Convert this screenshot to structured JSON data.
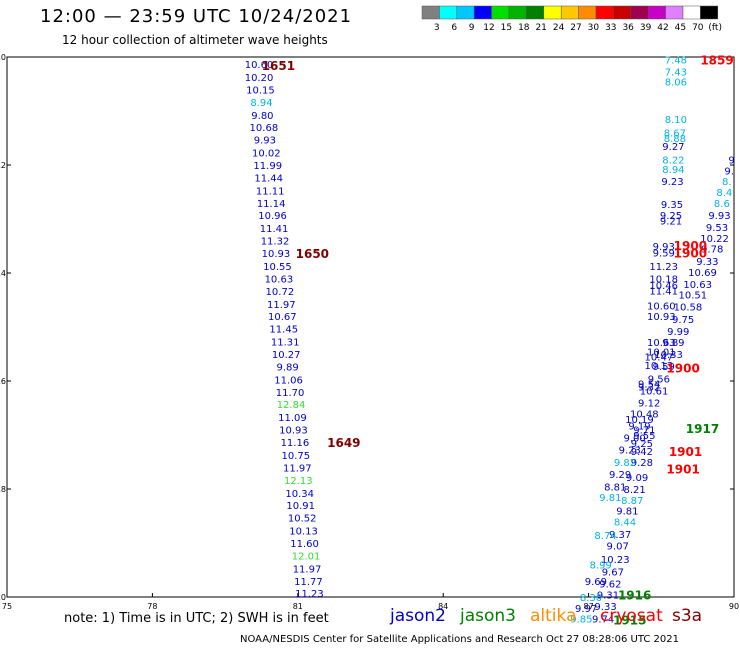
{
  "header": {
    "title": "12:00  —  23:59  UTC  10/24/2021",
    "subtitle": "12 hour collection of altimeter wave heights"
  },
  "colorbar": {
    "colors": [
      "#808080",
      "#00ffff",
      "#00c8ff",
      "#0000ff",
      "#00e000",
      "#00b400",
      "#008000",
      "#ffff00",
      "#ffc800",
      "#ff8c00",
      "#ff0000",
      "#c80000",
      "#a00050",
      "#c800c8",
      "#e080ff",
      "#ffffff",
      "#000000"
    ],
    "labels": [
      "3",
      "6",
      "9",
      "12",
      "15",
      "18",
      "21",
      "24",
      "27",
      "30",
      "33",
      "36",
      "39",
      "42",
      "45",
      "70",
      "(ft)"
    ]
  },
  "axes": {
    "lon_ticks": [
      "75",
      "78",
      "81",
      "84",
      "87",
      "90"
    ],
    "lat_ticks": [
      "10",
      "12",
      "14",
      "16",
      "18",
      "20"
    ]
  },
  "satellite_colors": {
    "jason2": "#0000cc",
    "jason3": "#008000",
    "altika": "#ff8c00",
    "cryosat": "#ff0000",
    "s3a": "#800000",
    "light_blue": "#00b4e6",
    "light_green": "#33dd33"
  },
  "track_left": [
    {
      "lon": 80.2,
      "lat": 10.13,
      "v": "10.60"
    },
    {
      "lon": 80.2,
      "lat": 10.37,
      "v": "10.20"
    },
    {
      "lon": 80.23,
      "lat": 10.6,
      "v": "10.15"
    },
    {
      "lon": 80.25,
      "lat": 10.83,
      "v": "8.94",
      "c": "light_blue"
    },
    {
      "lon": 80.27,
      "lat": 11.07,
      "v": "9.80"
    },
    {
      "lon": 80.3,
      "lat": 11.3,
      "v": "10.68"
    },
    {
      "lon": 80.32,
      "lat": 11.53,
      "v": "9.93"
    },
    {
      "lon": 80.35,
      "lat": 11.77,
      "v": "10.02"
    },
    {
      "lon": 80.38,
      "lat": 12.0,
      "v": "11.99"
    },
    {
      "lon": 80.4,
      "lat": 12.23,
      "v": "11.44"
    },
    {
      "lon": 80.43,
      "lat": 12.47,
      "v": "11.11"
    },
    {
      "lon": 80.45,
      "lat": 12.7,
      "v": "11.14"
    },
    {
      "lon": 80.48,
      "lat": 12.93,
      "v": "10.96"
    },
    {
      "lon": 80.51,
      "lat": 13.17,
      "v": "11.41"
    },
    {
      "lon": 80.53,
      "lat": 13.4,
      "v": "11.32"
    },
    {
      "lon": 80.55,
      "lat": 13.63,
      "v": "10.93"
    },
    {
      "lon": 80.58,
      "lat": 13.87,
      "v": "10.55"
    },
    {
      "lon": 80.61,
      "lat": 14.1,
      "v": "10.63"
    },
    {
      "lon": 80.63,
      "lat": 14.33,
      "v": "10.72"
    },
    {
      "lon": 80.66,
      "lat": 14.57,
      "v": "11.97"
    },
    {
      "lon": 80.68,
      "lat": 14.8,
      "v": "10.67"
    },
    {
      "lon": 80.71,
      "lat": 15.03,
      "v": "11.45"
    },
    {
      "lon": 80.74,
      "lat": 15.27,
      "v": "11.31"
    },
    {
      "lon": 80.76,
      "lat": 15.5,
      "v": "10.27"
    },
    {
      "lon": 80.79,
      "lat": 15.73,
      "v": "9.89"
    },
    {
      "lon": 80.81,
      "lat": 15.97,
      "v": "11.06"
    },
    {
      "lon": 80.84,
      "lat": 16.2,
      "v": "11.70"
    },
    {
      "lon": 80.86,
      "lat": 16.43,
      "v": "12.84",
      "c": "light_green"
    },
    {
      "lon": 80.89,
      "lat": 16.67,
      "v": "11.09"
    },
    {
      "lon": 80.91,
      "lat": 16.9,
      "v": "10.93"
    },
    {
      "lon": 80.94,
      "lat": 17.13,
      "v": "11.16"
    },
    {
      "lon": 80.96,
      "lat": 17.37,
      "v": "10.75"
    },
    {
      "lon": 80.99,
      "lat": 17.6,
      "v": "11.97"
    },
    {
      "lon": 81.01,
      "lat": 17.83,
      "v": "12.13",
      "c": "light_green"
    },
    {
      "lon": 81.04,
      "lat": 18.07,
      "v": "10.34"
    },
    {
      "lon": 81.06,
      "lat": 18.3,
      "v": "10.91"
    },
    {
      "lon": 81.09,
      "lat": 18.53,
      "v": "10.52"
    },
    {
      "lon": 81.12,
      "lat": 18.77,
      "v": "10.13"
    },
    {
      "lon": 81.14,
      "lat": 19.0,
      "v": "11.60"
    },
    {
      "lon": 81.17,
      "lat": 19.23,
      "v": "12.01",
      "c": "light_green"
    },
    {
      "lon": 81.19,
      "lat": 19.47,
      "v": "11.97"
    },
    {
      "lon": 81.22,
      "lat": 19.7,
      "v": "11.77"
    },
    {
      "lon": 81.24,
      "lat": 19.93,
      "v": "11.23"
    }
  ],
  "track_right": [
    {
      "lon": 88.8,
      "lat": 10.05,
      "v": "7.48",
      "c": "light_blue"
    },
    {
      "lon": 88.8,
      "lat": 10.27,
      "v": "7.43",
      "c": "light_blue"
    },
    {
      "lon": 88.8,
      "lat": 10.45,
      "v": "8.06",
      "c": "light_blue"
    },
    {
      "lon": 88.8,
      "lat": 11.15,
      "v": "8.10",
      "c": "light_blue"
    },
    {
      "lon": 88.78,
      "lat": 11.4,
      "v": "8.67",
      "c": "light_blue"
    },
    {
      "lon": 88.78,
      "lat": 11.5,
      "v": "8.88",
      "c": "light_blue"
    },
    {
      "lon": 88.75,
      "lat": 11.65,
      "v": "9.27"
    },
    {
      "lon": 88.75,
      "lat": 11.9,
      "v": "8.22",
      "c": "light_blue"
    },
    {
      "lon": 88.75,
      "lat": 12.07,
      "v": "8.94",
      "c": "light_blue"
    },
    {
      "lon": 88.73,
      "lat": 12.3,
      "v": "9.23"
    },
    {
      "lon": 88.72,
      "lat": 12.72,
      "v": "9.35"
    },
    {
      "lon": 88.7,
      "lat": 12.93,
      "v": "9.25"
    },
    {
      "lon": 88.7,
      "lat": 13.03,
      "v": "9.21"
    },
    {
      "lon": 88.55,
      "lat": 13.5,
      "v": "9.93"
    },
    {
      "lon": 88.55,
      "lat": 13.62,
      "v": "9.59"
    },
    {
      "lon": 88.55,
      "lat": 13.87,
      "v": "11.23"
    },
    {
      "lon": 88.55,
      "lat": 14.1,
      "v": "10.18"
    },
    {
      "lon": 88.55,
      "lat": 14.22,
      "v": "10.46"
    },
    {
      "lon": 88.55,
      "lat": 14.32,
      "v": "11.41"
    },
    {
      "lon": 88.5,
      "lat": 14.6,
      "v": "10.60"
    },
    {
      "lon": 88.5,
      "lat": 14.8,
      "v": "10.93"
    },
    {
      "lon": 88.5,
      "lat": 15.28,
      "v": "10.63"
    },
    {
      "lon": 88.5,
      "lat": 15.45,
      "v": "10.01"
    },
    {
      "lon": 88.45,
      "lat": 15.55,
      "v": "10.47"
    },
    {
      "lon": 88.45,
      "lat": 15.7,
      "v": "10.13"
    },
    {
      "lon": 88.25,
      "lat": 16.05,
      "v": "9.54"
    },
    {
      "lon": 88.25,
      "lat": 16.1,
      "v": "9.32"
    },
    {
      "lon": 88.05,
      "lat": 16.7,
      "v": "10.19"
    },
    {
      "lon": 88.15,
      "lat": 16.9,
      "v": "9.71"
    },
    {
      "lon": 88.15,
      "lat": 17.0,
      "v": "9.55"
    },
    {
      "lon": 88.1,
      "lat": 17.15,
      "v": "9.25"
    },
    {
      "lon": 88.1,
      "lat": 17.3,
      "v": "9.42"
    },
    {
      "lon": 88.1,
      "lat": 17.5,
      "v": "9.28"
    },
    {
      "lon": 88.0,
      "lat": 17.78,
      "v": "9.09"
    },
    {
      "lon": 87.95,
      "lat": 18.0,
      "v": "8.21"
    },
    {
      "lon": 87.9,
      "lat": 18.2,
      "v": "8.87",
      "c": "light_blue"
    },
    {
      "lon": 87.8,
      "lat": 18.4,
      "v": "9.81"
    },
    {
      "lon": 87.75,
      "lat": 18.6,
      "v": "8.44",
      "c": "light_blue"
    },
    {
      "lon": 87.65,
      "lat": 18.83,
      "v": "9.37"
    },
    {
      "lon": 87.6,
      "lat": 19.05,
      "v": "9.07"
    },
    {
      "lon": 87.55,
      "lat": 19.3,
      "v": "10.23"
    },
    {
      "lon": 87.5,
      "lat": 19.53,
      "v": "9.67"
    },
    {
      "lon": 87.45,
      "lat": 19.75,
      "v": "9.62"
    },
    {
      "lon": 87.4,
      "lat": 19.95,
      "v": "9.31"
    },
    {
      "lon": 87.35,
      "lat": 20.17,
      "v": "9.33"
    },
    {
      "lon": 87.3,
      "lat": 20.4,
      "v": "9.74"
    }
  ],
  "track_far_right": [
    {
      "lon": 89.95,
      "lat": 11.9,
      "v": "9"
    },
    {
      "lon": 89.9,
      "lat": 12.1,
      "v": "9."
    },
    {
      "lon": 89.85,
      "lat": 12.3,
      "v": "8.",
      "c": "light_blue"
    },
    {
      "lon": 89.8,
      "lat": 12.5,
      "v": "8.4",
      "c": "light_blue"
    },
    {
      "lon": 89.75,
      "lat": 12.7,
      "v": "8.6",
      "c": "light_blue"
    },
    {
      "lon": 89.7,
      "lat": 12.93,
      "v": "9.93"
    },
    {
      "lon": 89.65,
      "lat": 13.15,
      "v": "9.53"
    },
    {
      "lon": 89.6,
      "lat": 13.35,
      "v": "10.22"
    },
    {
      "lon": 89.55,
      "lat": 13.55,
      "v": "9.78"
    },
    {
      "lon": 89.45,
      "lat": 13.78,
      "v": "9.33"
    },
    {
      "lon": 89.35,
      "lat": 13.98,
      "v": "10.69"
    },
    {
      "lon": 89.25,
      "lat": 14.2,
      "v": "10.63"
    },
    {
      "lon": 89.15,
      "lat": 14.4,
      "v": "10.51"
    },
    {
      "lon": 89.05,
      "lat": 14.62,
      "v": "10.58"
    },
    {
      "lon": 88.95,
      "lat": 14.85,
      "v": "9.75"
    },
    {
      "lon": 88.85,
      "lat": 15.07,
      "v": "9.99"
    },
    {
      "lon": 88.75,
      "lat": 15.28,
      "v": "9.89"
    },
    {
      "lon": 88.65,
      "lat": 15.5,
      "v": "10.33"
    },
    {
      "lon": 88.55,
      "lat": 15.72,
      "v": "9.59"
    },
    {
      "lon": 88.45,
      "lat": 15.95,
      "v": "9.56"
    },
    {
      "lon": 88.35,
      "lat": 16.18,
      "v": "10.61"
    },
    {
      "lon": 88.25,
      "lat": 16.4,
      "v": "9.12"
    },
    {
      "lon": 88.15,
      "lat": 16.6,
      "v": "10.48"
    },
    {
      "lon": 88.05,
      "lat": 16.82,
      "v": "9.19"
    },
    {
      "lon": 87.95,
      "lat": 17.05,
      "v": "9.00"
    },
    {
      "lon": 87.85,
      "lat": 17.27,
      "v": "9.23"
    },
    {
      "lon": 87.75,
      "lat": 17.5,
      "v": "9.82",
      "c": "light_blue"
    },
    {
      "lon": 87.65,
      "lat": 17.72,
      "v": "9.29"
    },
    {
      "lon": 87.55,
      "lat": 17.95,
      "v": "8.81"
    },
    {
      "lon": 87.45,
      "lat": 18.15,
      "v": "9.81",
      "c": "light_blue"
    },
    {
      "lon": 87.35,
      "lat": 18.85,
      "v": "8.74",
      "c": "light_blue"
    },
    {
      "lon": 87.25,
      "lat": 19.4,
      "v": "8.99",
      "c": "light_blue"
    },
    {
      "lon": 87.15,
      "lat": 19.7,
      "v": "9.69"
    },
    {
      "lon": 87.05,
      "lat": 20.0,
      "v": "8.30",
      "c": "light_blue"
    },
    {
      "lon": 86.95,
      "lat": 20.2,
      "v": "9.97"
    },
    {
      "lon": 86.85,
      "lat": 20.4,
      "v": "9.85",
      "c": "light_blue"
    }
  ],
  "time_labels": [
    {
      "lon": 80.6,
      "lat": 10.15,
      "t": "1651",
      "c": "s3a"
    },
    {
      "lon": 81.3,
      "lat": 13.63,
      "t": "1650",
      "c": "s3a"
    },
    {
      "lon": 81.95,
      "lat": 17.13,
      "t": "1649",
      "c": "s3a"
    },
    {
      "lon": 89.65,
      "lat": 10.05,
      "t": "1859",
      "c": "cryosat"
    },
    {
      "lon": 89.1,
      "lat": 13.48,
      "t": "1900",
      "c": "cryosat"
    },
    {
      "lon": 89.1,
      "lat": 13.62,
      "t": "1900",
      "c": "cryosat"
    },
    {
      "lon": 88.95,
      "lat": 15.75,
      "t": "1900",
      "c": "cryosat"
    },
    {
      "lon": 89.35,
      "lat": 16.87,
      "t": "1917",
      "c": "jason3"
    },
    {
      "lon": 89.0,
      "lat": 17.3,
      "t": "1901",
      "c": "cryosat"
    },
    {
      "lon": 88.95,
      "lat": 17.62,
      "t": "1901",
      "c": "cryosat"
    },
    {
      "lon": 87.95,
      "lat": 19.95,
      "t": "1916",
      "c": "jason3"
    },
    {
      "lon": 87.85,
      "lat": 20.42,
      "t": "1915",
      "c": "jason3"
    }
  ],
  "note": "note:  1) Time is in UTC; 2) SWH is in feet",
  "satellites": [
    {
      "name": "jason2",
      "c": "jason2"
    },
    {
      "name": "jason3",
      "c": "jason3"
    },
    {
      "name": "altika",
      "c": "altika"
    },
    {
      "name": "cryosat",
      "c": "cryosat"
    },
    {
      "name": "s3a",
      "c": "s3a"
    }
  ],
  "credit": "NOAA/NESDIS Center for Satellite Applications and Research    Oct 27 08:28:06 UTC 2021"
}
